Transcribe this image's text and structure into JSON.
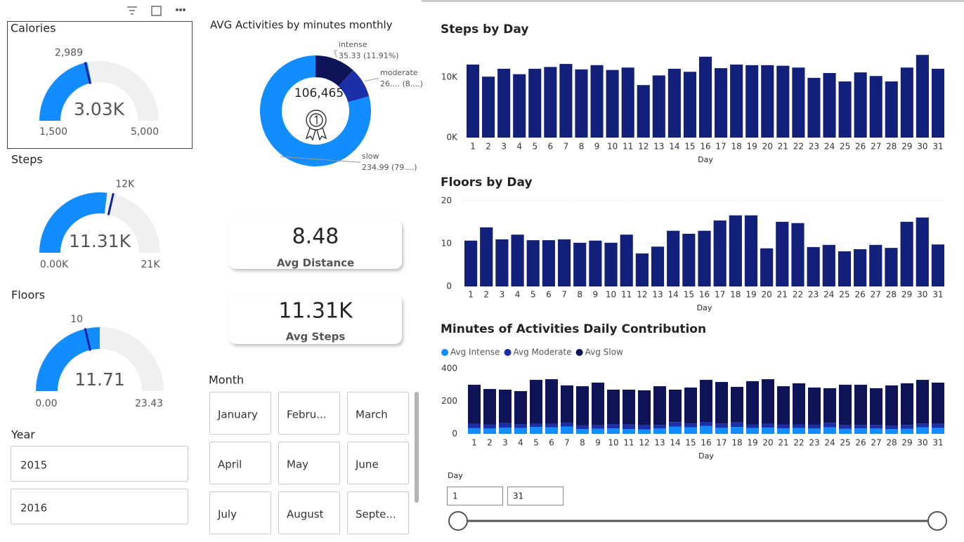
{
  "chart_data": [
    {
      "type": "gauge",
      "title": "Calories",
      "color": "#118dff",
      "track_color": "#f0f0f0",
      "target_color": "#12239e",
      "value": {
        "value": 3030,
        "label": "3.03K"
      },
      "target": {
        "value": 2989,
        "label": "2,989"
      },
      "min": {
        "value": 1500,
        "label": "1,500"
      },
      "max": {
        "value": 5000,
        "label": "5,000"
      }
    },
    {
      "type": "gauge",
      "title": "Steps",
      "color": "#118dff",
      "track_color": "#f0f0f0",
      "target_color": "#12239e",
      "value": {
        "value": 11310,
        "label": "11.31K"
      },
      "target": {
        "value": 12000,
        "label": "12K"
      },
      "min": {
        "value": 0,
        "label": "0.00K"
      },
      "max": {
        "value": 21000,
        "label": "21K"
      }
    },
    {
      "type": "gauge",
      "title": "Floors",
      "color": "#118dff",
      "track_color": "#f0f0f0",
      "target_color": "#12239e",
      "value": 11.71,
      "target": 10,
      "min": {
        "value": 0,
        "label": "0.00"
      },
      "max": 23.43
    },
    {
      "type": "pie",
      "title": "AVG Activities by minutes monthly",
      "center_label": "106,465",
      "categories": [
        "intense",
        "moderate",
        "slow"
      ],
      "values": [
        35.33,
        26.3,
        234.99
      ],
      "value_labels": [
        "35.33 (11.91%)",
        "26.... (8....)",
        "234.99 (79....)"
      ],
      "colors": [
        "#0e1457",
        "#1a2fa8",
        "#118dff"
      ]
    },
    {
      "type": "bar",
      "title": "Steps by Day",
      "x_label": "Day",
      "color": "#12207a",
      "grid": false,
      "categories": [
        "1",
        "2",
        "3",
        "4",
        "5",
        "6",
        "7",
        "8",
        "9",
        "10",
        "11",
        "12",
        "13",
        "14",
        "15",
        "16",
        "17",
        "18",
        "19",
        "20",
        "21",
        "22",
        "23",
        "24",
        "25",
        "26",
        "27",
        "28",
        "29",
        "30",
        "31"
      ],
      "values": [
        12100,
        10100,
        11400,
        10500,
        11400,
        11700,
        12200,
        11300,
        12000,
        11200,
        11600,
        8700,
        10300,
        11400,
        10900,
        13400,
        11500,
        12100,
        12000,
        12000,
        11900,
        11600,
        9900,
        10700,
        9300,
        10800,
        10200,
        9300,
        11600,
        13700,
        11400
      ],
      "ylim": [
        0,
        14000
      ],
      "yticks": [
        {
          "value": 0,
          "label": "0K"
        },
        {
          "value": 10000,
          "label": "10K"
        }
      ]
    },
    {
      "type": "bar",
      "title": "Floors by Day",
      "x_label": "Day",
      "color": "#12207a",
      "grid": true,
      "categories": [
        "1",
        "2",
        "3",
        "4",
        "5",
        "6",
        "7",
        "8",
        "9",
        "10",
        "11",
        "12",
        "13",
        "14",
        "15",
        "16",
        "17",
        "18",
        "19",
        "20",
        "21",
        "22",
        "23",
        "24",
        "25",
        "26",
        "27",
        "28",
        "29",
        "30",
        "31"
      ],
      "values": [
        10.7,
        13.8,
        11.0,
        12.1,
        10.8,
        10.8,
        11.0,
        10.2,
        10.7,
        10.2,
        12.1,
        7.7,
        9.3,
        13.0,
        12.3,
        13.0,
        15.4,
        16.6,
        16.6,
        8.9,
        15.1,
        14.8,
        9.2,
        9.7,
        8.2,
        8.7,
        9.7,
        9.0,
        15.1,
        16.1,
        9.8
      ],
      "ylim": [
        0,
        20
      ],
      "yticks": [
        0,
        10,
        20
      ]
    },
    {
      "type": "bar",
      "stacked": true,
      "title": "Minutes of Activities Daily Contribution",
      "x_label": "Day",
      "grid": false,
      "categories": [
        "1",
        "2",
        "3",
        "4",
        "5",
        "6",
        "7",
        "8",
        "9",
        "10",
        "11",
        "12",
        "13",
        "14",
        "15",
        "16",
        "17",
        "18",
        "19",
        "20",
        "21",
        "22",
        "23",
        "24",
        "25",
        "26",
        "27",
        "28",
        "29",
        "30",
        "31"
      ],
      "series": [
        {
          "name": "Avg Intense",
          "color": "#118dff",
          "values": [
            35,
            33,
            38,
            36,
            42,
            40,
            45,
            30,
            32,
            34,
            30,
            28,
            33,
            44,
            40,
            48,
            37,
            42,
            36,
            38,
            34,
            36,
            33,
            40,
            31,
            34,
            33,
            30,
            31,
            40,
            37
          ]
        },
        {
          "name": "Avg Moderate",
          "color": "#1a2fa8",
          "values": [
            27,
            25,
            28,
            24,
            20,
            22,
            24,
            22,
            21,
            26,
            27,
            25,
            22,
            28,
            24,
            25,
            27,
            28,
            22,
            24,
            24,
            22,
            23,
            28,
            22,
            21,
            22,
            20,
            24,
            23,
            24
          ]
        },
        {
          "name": "Avg Slow",
          "color": "#0e1457",
          "values": [
            239,
            217,
            205,
            202,
            269,
            273,
            228,
            240,
            261,
            211,
            214,
            214,
            237,
            199,
            220,
            258,
            254,
            218,
            265,
            273,
            234,
            252,
            228,
            212,
            248,
            246,
            225,
            247,
            255,
            268,
            253
          ]
        }
      ],
      "ylim": [
        0,
        400
      ],
      "yticks": [
        0,
        200,
        400
      ]
    }
  ],
  "cards": [
    {
      "value": "8.48",
      "label": "Avg Distance"
    },
    {
      "value": "11.31K",
      "label": "Avg Steps"
    }
  ],
  "slicers": {
    "year": {
      "title": "Year",
      "items": [
        "2015",
        "2016"
      ]
    },
    "month": {
      "title": "Month",
      "items": [
        "January",
        "Febru...",
        "March",
        "April",
        "May",
        "June",
        "July",
        "August",
        "Septe..."
      ]
    },
    "day": {
      "title": "Day",
      "from": "1",
      "to": "31"
    }
  }
}
